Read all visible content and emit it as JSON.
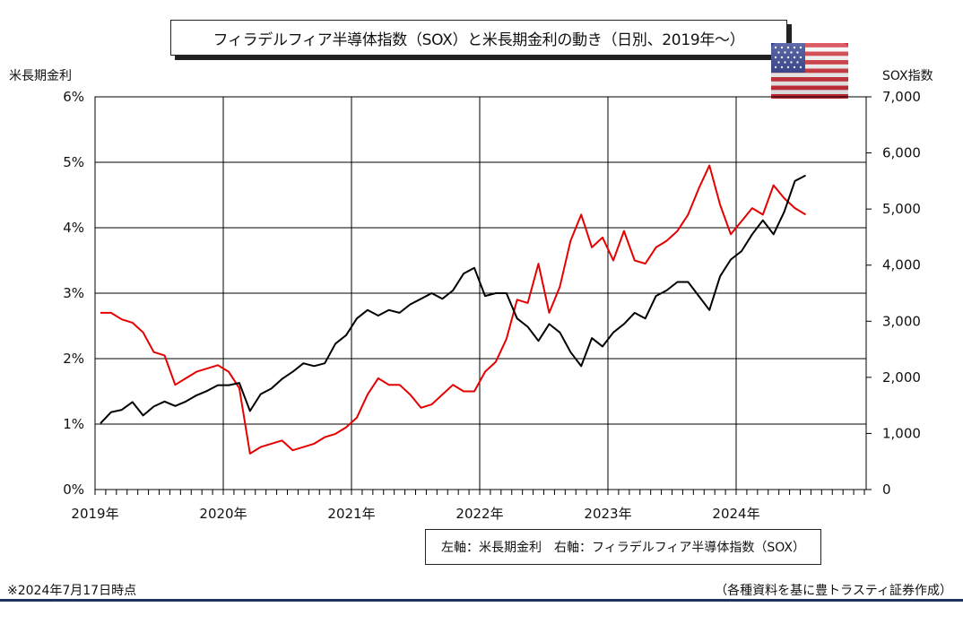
{
  "title": "フィラデルフィア半導体指数（SOX）と米長期金利の動き（日別、2019年～）",
  "left_axis_title": "米長期金利",
  "right_axis_title": "SOX指数",
  "legend": {
    "left_label": "左軸：米長期金利",
    "right_label": "右軸：フィラデルフィア半導体指数（SOX）"
  },
  "note": "※2024年7月17日時点",
  "source": "（各種資料を基に豊トラスティ証券作成）",
  "flag_icon": "us-flag-icon",
  "colors": {
    "rate": "#e60000",
    "sox": "#000000",
    "rule": "#1f3264"
  },
  "chart_data": {
    "type": "line",
    "x_ticks": [
      "2019年",
      "2020年",
      "2021年",
      "2022年",
      "2023年",
      "2024年"
    ],
    "y_left": {
      "label": "米長期金利",
      "range": [
        0,
        6
      ],
      "ticks": [
        "0%",
        "1%",
        "2%",
        "3%",
        "4%",
        "5%",
        "6%"
      ]
    },
    "y_right": {
      "label": "SOX指数",
      "range": [
        0,
        7000
      ],
      "ticks": [
        "0",
        "1,000",
        "2,000",
        "3,000",
        "4,000",
        "5,000",
        "6,000",
        "7,000"
      ]
    },
    "grid": true,
    "series": [
      {
        "name": "米長期金利",
        "axis": "left",
        "points": [
          [
            "2019-01",
            2.7
          ],
          [
            "2019-02",
            2.7
          ],
          [
            "2019-03",
            2.6
          ],
          [
            "2019-04",
            2.55
          ],
          [
            "2019-05",
            2.4
          ],
          [
            "2019-06",
            2.1
          ],
          [
            "2019-07",
            2.05
          ],
          [
            "2019-08",
            1.6
          ],
          [
            "2019-09",
            1.7
          ],
          [
            "2019-10",
            1.8
          ],
          [
            "2019-11",
            1.85
          ],
          [
            "2019-12",
            1.9
          ],
          [
            "2020-01",
            1.8
          ],
          [
            "2020-02",
            1.55
          ],
          [
            "2020-03",
            0.55
          ],
          [
            "2020-04",
            0.65
          ],
          [
            "2020-05",
            0.7
          ],
          [
            "2020-06",
            0.75
          ],
          [
            "2020-07",
            0.6
          ],
          [
            "2020-08",
            0.65
          ],
          [
            "2020-09",
            0.7
          ],
          [
            "2020-10",
            0.8
          ],
          [
            "2020-11",
            0.85
          ],
          [
            "2020-12",
            0.95
          ],
          [
            "2021-01",
            1.1
          ],
          [
            "2021-02",
            1.45
          ],
          [
            "2021-03",
            1.7
          ],
          [
            "2021-04",
            1.6
          ],
          [
            "2021-05",
            1.6
          ],
          [
            "2021-06",
            1.45
          ],
          [
            "2021-07",
            1.25
          ],
          [
            "2021-08",
            1.3
          ],
          [
            "2021-09",
            1.45
          ],
          [
            "2021-10",
            1.6
          ],
          [
            "2021-11",
            1.5
          ],
          [
            "2021-12",
            1.5
          ],
          [
            "2022-01",
            1.8
          ],
          [
            "2022-02",
            1.95
          ],
          [
            "2022-03",
            2.3
          ],
          [
            "2022-04",
            2.9
          ],
          [
            "2022-05",
            2.85
          ],
          [
            "2022-06",
            3.45
          ],
          [
            "2022-07",
            2.7
          ],
          [
            "2022-08",
            3.1
          ],
          [
            "2022-09",
            3.8
          ],
          [
            "2022-10",
            4.2
          ],
          [
            "2022-11",
            3.7
          ],
          [
            "2022-12",
            3.85
          ],
          [
            "2023-01",
            3.5
          ],
          [
            "2023-02",
            3.95
          ],
          [
            "2023-03",
            3.5
          ],
          [
            "2023-04",
            3.45
          ],
          [
            "2023-05",
            3.7
          ],
          [
            "2023-06",
            3.8
          ],
          [
            "2023-07",
            3.95
          ],
          [
            "2023-08",
            4.2
          ],
          [
            "2023-09",
            4.6
          ],
          [
            "2023-10",
            4.95
          ],
          [
            "2023-11",
            4.35
          ],
          [
            "2023-12",
            3.9
          ],
          [
            "2024-01",
            4.1
          ],
          [
            "2024-02",
            4.3
          ],
          [
            "2024-03",
            4.2
          ],
          [
            "2024-04",
            4.65
          ],
          [
            "2024-05",
            4.45
          ],
          [
            "2024-06",
            4.3
          ],
          [
            "2024-07",
            4.2
          ]
        ]
      },
      {
        "name": "フィラデルフィア半導体指数（SOX）",
        "axis": "right",
        "points": [
          [
            "2019-01",
            1180
          ],
          [
            "2019-02",
            1380
          ],
          [
            "2019-03",
            1420
          ],
          [
            "2019-04",
            1560
          ],
          [
            "2019-05",
            1320
          ],
          [
            "2019-06",
            1480
          ],
          [
            "2019-07",
            1570
          ],
          [
            "2019-08",
            1490
          ],
          [
            "2019-09",
            1570
          ],
          [
            "2019-10",
            1680
          ],
          [
            "2019-11",
            1760
          ],
          [
            "2019-12",
            1860
          ],
          [
            "2020-01",
            1860
          ],
          [
            "2020-02",
            1900
          ],
          [
            "2020-03",
            1400
          ],
          [
            "2020-04",
            1700
          ],
          [
            "2020-05",
            1800
          ],
          [
            "2020-06",
            1970
          ],
          [
            "2020-07",
            2100
          ],
          [
            "2020-08",
            2250
          ],
          [
            "2020-09",
            2200
          ],
          [
            "2020-10",
            2250
          ],
          [
            "2020-11",
            2600
          ],
          [
            "2020-12",
            2750
          ],
          [
            "2021-01",
            3050
          ],
          [
            "2021-02",
            3200
          ],
          [
            "2021-03",
            3100
          ],
          [
            "2021-04",
            3200
          ],
          [
            "2021-05",
            3150
          ],
          [
            "2021-06",
            3300
          ],
          [
            "2021-07",
            3400
          ],
          [
            "2021-08",
            3500
          ],
          [
            "2021-09",
            3400
          ],
          [
            "2021-10",
            3550
          ],
          [
            "2021-11",
            3850
          ],
          [
            "2021-12",
            3950
          ],
          [
            "2022-01",
            3450
          ],
          [
            "2022-02",
            3500
          ],
          [
            "2022-03",
            3500
          ],
          [
            "2022-04",
            3050
          ],
          [
            "2022-05",
            2900
          ],
          [
            "2022-06",
            2650
          ],
          [
            "2022-07",
            2950
          ],
          [
            "2022-08",
            2800
          ],
          [
            "2022-09",
            2450
          ],
          [
            "2022-10",
            2200
          ],
          [
            "2022-11",
            2700
          ],
          [
            "2022-12",
            2550
          ],
          [
            "2023-01",
            2800
          ],
          [
            "2023-02",
            2950
          ],
          [
            "2023-03",
            3150
          ],
          [
            "2023-04",
            3050
          ],
          [
            "2023-05",
            3450
          ],
          [
            "2023-06",
            3550
          ],
          [
            "2023-07",
            3700
          ],
          [
            "2023-08",
            3700
          ],
          [
            "2023-09",
            3450
          ],
          [
            "2023-10",
            3200
          ],
          [
            "2023-11",
            3800
          ],
          [
            "2023-12",
            4100
          ],
          [
            "2024-01",
            4250
          ],
          [
            "2024-02",
            4550
          ],
          [
            "2024-03",
            4800
          ],
          [
            "2024-04",
            4550
          ],
          [
            "2024-05",
            4950
          ],
          [
            "2024-06",
            5500
          ],
          [
            "2024-07",
            5600
          ]
        ]
      }
    ]
  }
}
